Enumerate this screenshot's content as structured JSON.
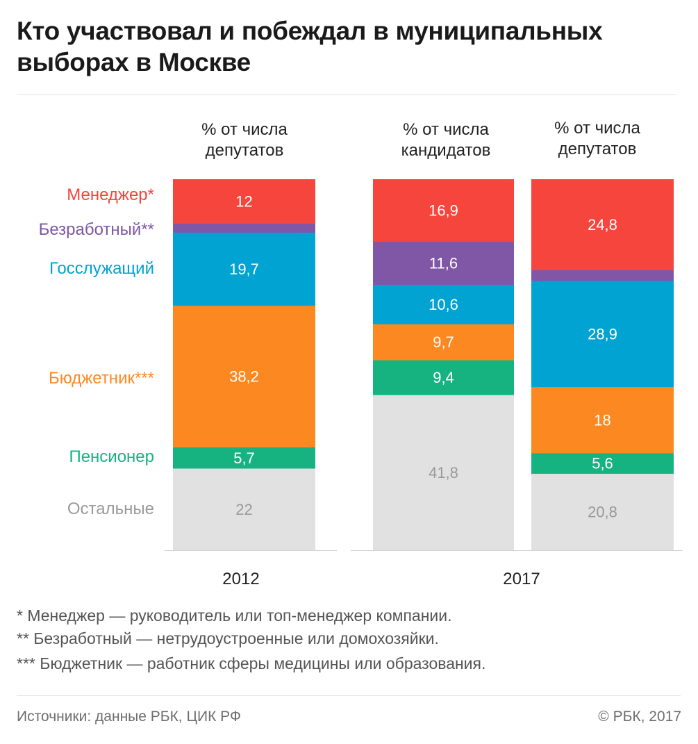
{
  "title": "Кто участвовал и побеждал в муниципальных выборах в Москве",
  "colors": {
    "manager": "#f5453d",
    "unemployed": "#7f57a6",
    "civil": "#00a3d1",
    "budget": "#fc8822",
    "pensioner": "#16b381",
    "other": "#e1e1e1",
    "value_on_color": "#ffffff",
    "value_on_gray": "#9a9a9a"
  },
  "chart_data": {
    "type": "bar",
    "stacked": true,
    "ylim": [
      0,
      100
    ],
    "categories": [
      "Менеджер*",
      "Безработный**",
      "Госслужащий",
      "Бюджетник***",
      "Пенсионер",
      "Остальные"
    ],
    "category_colors": [
      "#f5453d",
      "#7f57a6",
      "#00a3d1",
      "#fc8822",
      "#16b381",
      "#9a9a9a"
    ],
    "columns": [
      {
        "group": "2012",
        "label": "% от числа депутатов",
        "values": [
          12,
          2.4,
          19.7,
          38.2,
          5.7,
          22
        ],
        "labels": [
          "12",
          "",
          "19,7",
          "38,2",
          "5,7",
          "22"
        ]
      },
      {
        "group": "2017",
        "label": "% от числа кандидатов",
        "values": [
          16.9,
          11.6,
          10.6,
          9.7,
          9.4,
          41.8
        ],
        "labels": [
          "16,9",
          "11,6",
          "10,6",
          "9,7",
          "9,4",
          "41,8"
        ]
      },
      {
        "group": "2017",
        "label": "% от числа депутатов",
        "values": [
          24.8,
          2.9,
          28.9,
          18,
          5.6,
          20.8
        ],
        "labels": [
          "24,8",
          "",
          "28,9",
          "18",
          "5,6",
          "20,8"
        ]
      }
    ],
    "groups": [
      "2012",
      "2017"
    ]
  },
  "notes": [
    "* Менеджер — руководитель или топ-менеджер компании.",
    "** Безработный — нетрудоустроенные или домохозяйки.",
    "*** Бюджетник — работник сферы медицины или образования."
  ],
  "footer": {
    "source": "Источники: данные РБК, ЦИК РФ",
    "copyright": "© РБК, 2017"
  }
}
